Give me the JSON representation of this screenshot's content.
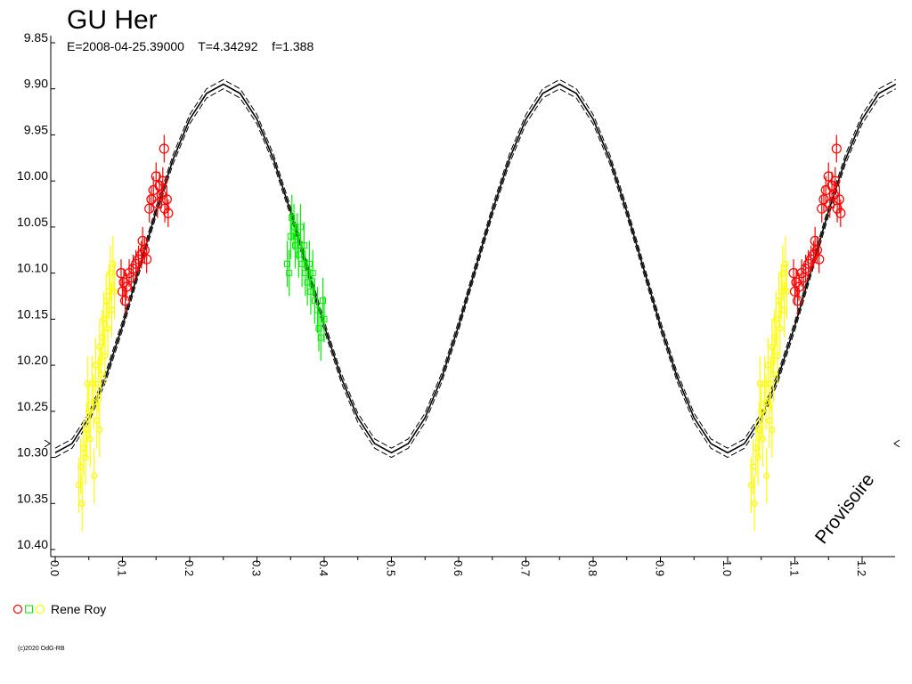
{
  "chart_data": {
    "type": "scatter",
    "title": "GU Her",
    "subtitle": "E=2008-04-25.39000    T=4.34292    f=1.388",
    "annotation": "Provisoire",
    "footer": "(c)2020 OdG-RB",
    "observer": "Rene Roy",
    "xlim": [
      0,
      1.25
    ],
    "ylim": [
      9.85,
      10.4
    ],
    "inverted_y": true,
    "repeat_period": 1,
    "xticks": [
      {
        "value": 0,
        "label": "0.0"
      },
      0.1,
      0.2,
      0.3,
      0.4,
      0.5,
      0.6,
      0.7,
      0.8,
      0.9,
      {
        "value": 1,
        "label": "1.0"
      },
      1.1,
      1.2
    ],
    "xminorticks": [
      0.05,
      0.15,
      0.25,
      0.35,
      0.45,
      0.55,
      0.65,
      0.75,
      0.85,
      0.95,
      1.05,
      1.15
    ],
    "yticks": [
      9.85,
      {
        "value": 9.9,
        "label": "9.90"
      },
      9.95,
      {
        "value": 10,
        "label": "10.00"
      },
      10.05,
      {
        "value": 10.1,
        "label": "10.10"
      },
      10.15,
      {
        "value": 10.2,
        "label": "10.20"
      },
      10.25,
      {
        "value": 10.3,
        "label": "10.30"
      },
      10.35,
      {
        "value": 10.4,
        "label": "10.40"
      }
    ],
    "model": {
      "color": "#000000",
      "x": [
        0,
        0.025,
        0.05,
        0.075,
        0.1,
        0.125,
        0.15,
        0.175,
        0.2,
        0.225,
        0.25,
        0.275,
        0.3,
        0.325,
        0.35,
        0.375,
        0.4,
        0.425,
        0.45,
        0.475,
        0.5,
        0.525,
        0.55,
        0.575,
        0.6,
        0.625,
        0.65,
        0.675,
        0.7,
        0.725,
        0.75,
        0.775,
        0.8,
        0.825,
        0.85,
        0.875,
        0.9,
        0.925,
        0.95,
        0.975,
        1,
        1.025,
        1.05,
        1.075,
        1.1,
        1.125,
        1.15,
        1.175,
        1.2,
        1.225,
        1.25
      ],
      "series": [
        {
          "dashed": false,
          "values": [
            10.295,
            10.285,
            10.257,
            10.213,
            10.157,
            10.095,
            10.033,
            9.977,
            9.933,
            9.905,
            9.895,
            9.905,
            9.933,
            9.977,
            10.033,
            10.095,
            10.157,
            10.213,
            10.257,
            10.285,
            10.295,
            10.285,
            10.257,
            10.213,
            10.157,
            10.095,
            10.033,
            9.977,
            9.933,
            9.905,
            9.895,
            9.905,
            9.933,
            9.977,
            10.033,
            10.095,
            10.157,
            10.213,
            10.257,
            10.285,
            10.295,
            10.285,
            10.257,
            10.213,
            10.157,
            10.095,
            10.033,
            9.977,
            9.933,
            9.905,
            9.895
          ]
        },
        {
          "dashed": true,
          "values": [
            10.29,
            10.28,
            10.252,
            10.208,
            10.152,
            10.09,
            10.028,
            9.972,
            9.928,
            9.9,
            9.89,
            9.9,
            9.928,
            9.972,
            10.028,
            10.09,
            10.152,
            10.208,
            10.252,
            10.28,
            10.29,
            10.28,
            10.252,
            10.208,
            10.152,
            10.09,
            10.028,
            9.972,
            9.928,
            9.9,
            9.89,
            9.9,
            9.928,
            9.972,
            10.028,
            10.09,
            10.152,
            10.208,
            10.252,
            10.28,
            10.29,
            10.28,
            10.252,
            10.208,
            10.152,
            10.09,
            10.028,
            9.972,
            9.928,
            9.9,
            9.89
          ]
        },
        {
          "dashed": true,
          "values": [
            10.3,
            10.29,
            10.262,
            10.218,
            10.162,
            10.1,
            10.038,
            9.982,
            9.938,
            9.91,
            9.9,
            9.91,
            9.938,
            9.982,
            10.038,
            10.1,
            10.162,
            10.218,
            10.262,
            10.29,
            10.3,
            10.29,
            10.262,
            10.218,
            10.162,
            10.1,
            10.038,
            9.982,
            9.938,
            9.91,
            9.9,
            9.91,
            9.938,
            9.982,
            10.038,
            10.1,
            10.162,
            10.218,
            10.262,
            10.29,
            10.3,
            10.29,
            10.262,
            10.218,
            10.162,
            10.1,
            10.038,
            9.982,
            9.938,
            9.91,
            9.9
          ]
        }
      ]
    },
    "series": [
      {
        "color": "#ff0000",
        "marker": "circle",
        "error": 0.015,
        "x": [
          0.098,
          0.1,
          0.102,
          0.104,
          0.106,
          0.11,
          0.113,
          0.116,
          0.12,
          0.124,
          0.128,
          0.13,
          0.133,
          0.136,
          0.14,
          0.143,
          0.146,
          0.15,
          0.152,
          0.155,
          0.158,
          0.16,
          0.163,
          0.166,
          0.168,
          0.162
        ],
        "values": [
          10.1,
          10.12,
          10.11,
          10.13,
          10.115,
          10.1,
          10.105,
          10.095,
          10.09,
          10.085,
          10.08,
          10.065,
          10.075,
          10.085,
          10.03,
          10.02,
          10.01,
          9.995,
          10.025,
          10.005,
          10.015,
          10,
          10.03,
          10.02,
          10.035,
          9.965
        ]
      },
      {
        "color": "#00ee00",
        "marker": "square",
        "error": 0.025,
        "x": [
          0.345,
          0.348,
          0.35,
          0.352,
          0.355,
          0.357,
          0.36,
          0.362,
          0.365,
          0.367,
          0.37,
          0.372,
          0.375,
          0.378,
          0.38,
          0.383,
          0.386,
          0.39,
          0.392,
          0.395,
          0.398,
          0.4
        ],
        "values": [
          10.09,
          10.1,
          10.06,
          10.04,
          10.05,
          10.07,
          10.06,
          10.08,
          10.05,
          10.09,
          10.07,
          10.1,
          10.11,
          10.09,
          10.12,
          10.1,
          10.13,
          10.14,
          10.16,
          10.17,
          10.13,
          10.15
        ]
      },
      {
        "color": "#ffff00",
        "marker": "dot",
        "error": 0.03,
        "x": [
          0.035,
          0.038,
          0.04,
          0.042,
          0.045,
          0.047,
          0.05,
          0.052,
          0.055,
          0.057,
          0.06,
          0.062,
          0.064,
          0.066,
          0.068,
          0.07,
          0.072,
          0.074,
          0.076,
          0.078,
          0.08,
          0.082,
          0.084,
          0.086,
          0.088,
          0.058,
          0.048,
          0.066
        ],
        "values": [
          10.33,
          10.31,
          10.35,
          10.29,
          10.3,
          10.27,
          10.25,
          10.28,
          10.22,
          10.24,
          10.2,
          10.26,
          10.22,
          10.18,
          10.21,
          10.17,
          10.15,
          10.19,
          10.13,
          10.16,
          10.12,
          10.1,
          10.14,
          10.09,
          10.12,
          10.32,
          10.22,
          10.27
        ]
      }
    ]
  }
}
